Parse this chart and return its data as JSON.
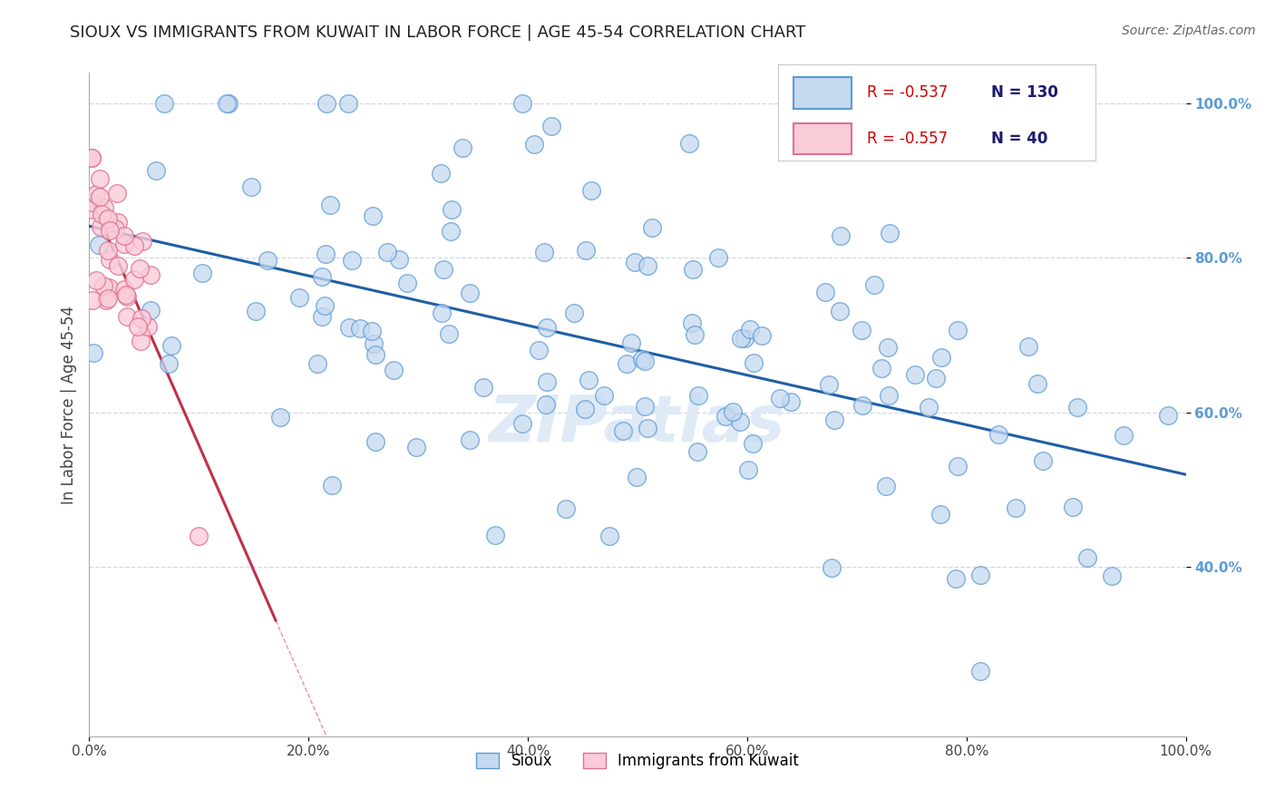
{
  "title": "SIOUX VS IMMIGRANTS FROM KUWAIT IN LABOR FORCE | AGE 45-54 CORRELATION CHART",
  "source_text": "Source: ZipAtlas.com",
  "ylabel": "In Labor Force | Age 45-54",
  "xlim": [
    0.0,
    1.0
  ],
  "ylim": [
    0.18,
    1.04
  ],
  "x_ticks": [
    0.0,
    0.2,
    0.4,
    0.6,
    0.8,
    1.0
  ],
  "y_ticks": [
    0.4,
    0.6,
    0.8,
    1.0
  ],
  "x_tick_labels": [
    "0.0%",
    "20.0%",
    "40.0%",
    "60.0%",
    "80.0%",
    "100.0%"
  ],
  "y_tick_labels": [
    "40.0%",
    "60.0%",
    "80.0%",
    "100.0%"
  ],
  "sioux_color": "#c5d9f0",
  "sioux_edge_color": "#5b9bd5",
  "kuwait_color": "#f9ccd8",
  "kuwait_edge_color": "#e07090",
  "blue_line_color": "#1f5fa6",
  "pink_line_color": "#c0304a",
  "grid_color": "#d0d8e8",
  "background_color": "#ffffff",
  "legend_R_color": "#cc0000",
  "legend_N_color": "#1a1a6e",
  "R_sioux": "-0.537",
  "N_sioux": "130",
  "R_kuwait": "-0.557",
  "N_kuwait": "40",
  "watermark": "ZIPatlas",
  "watermark_color": "#dce8f5"
}
